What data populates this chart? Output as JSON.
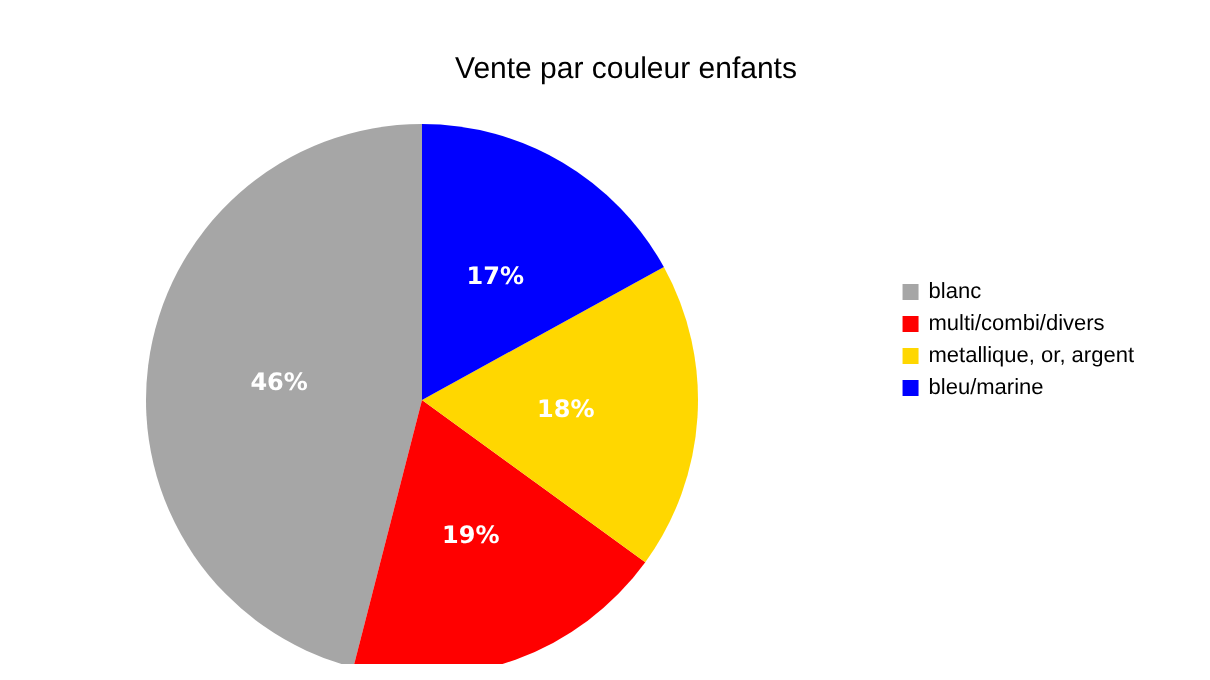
{
  "chart_data": {
    "type": "pie",
    "title": "Vente par couleur enfants",
    "categories": [
      "blanc",
      "multi/combi/divers",
      "metallique, or, argent",
      "bleu/marine"
    ],
    "values": [
      46,
      19,
      18,
      17
    ],
    "colors": [
      "#a6a6a6",
      "#ff0000",
      "#ffd700",
      "#0000ff"
    ],
    "value_labels": [
      "46%",
      "19%",
      "18%",
      "17%"
    ],
    "legend": "right"
  }
}
